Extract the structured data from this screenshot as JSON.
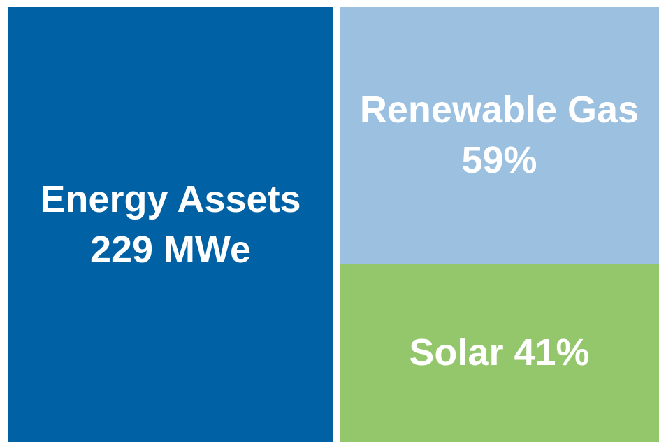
{
  "chart_data": {
    "type": "treemap",
    "total": {
      "label": "Energy Assets",
      "value": 229,
      "value_label": "229 MWe",
      "color": "#0062a4"
    },
    "categories": [
      "Renewable Gas",
      "Solar"
    ],
    "values": [
      59,
      41
    ],
    "value_labels": [
      "59%",
      "41%"
    ],
    "colors": [
      "#9bc0e0",
      "#94c76c"
    ]
  }
}
